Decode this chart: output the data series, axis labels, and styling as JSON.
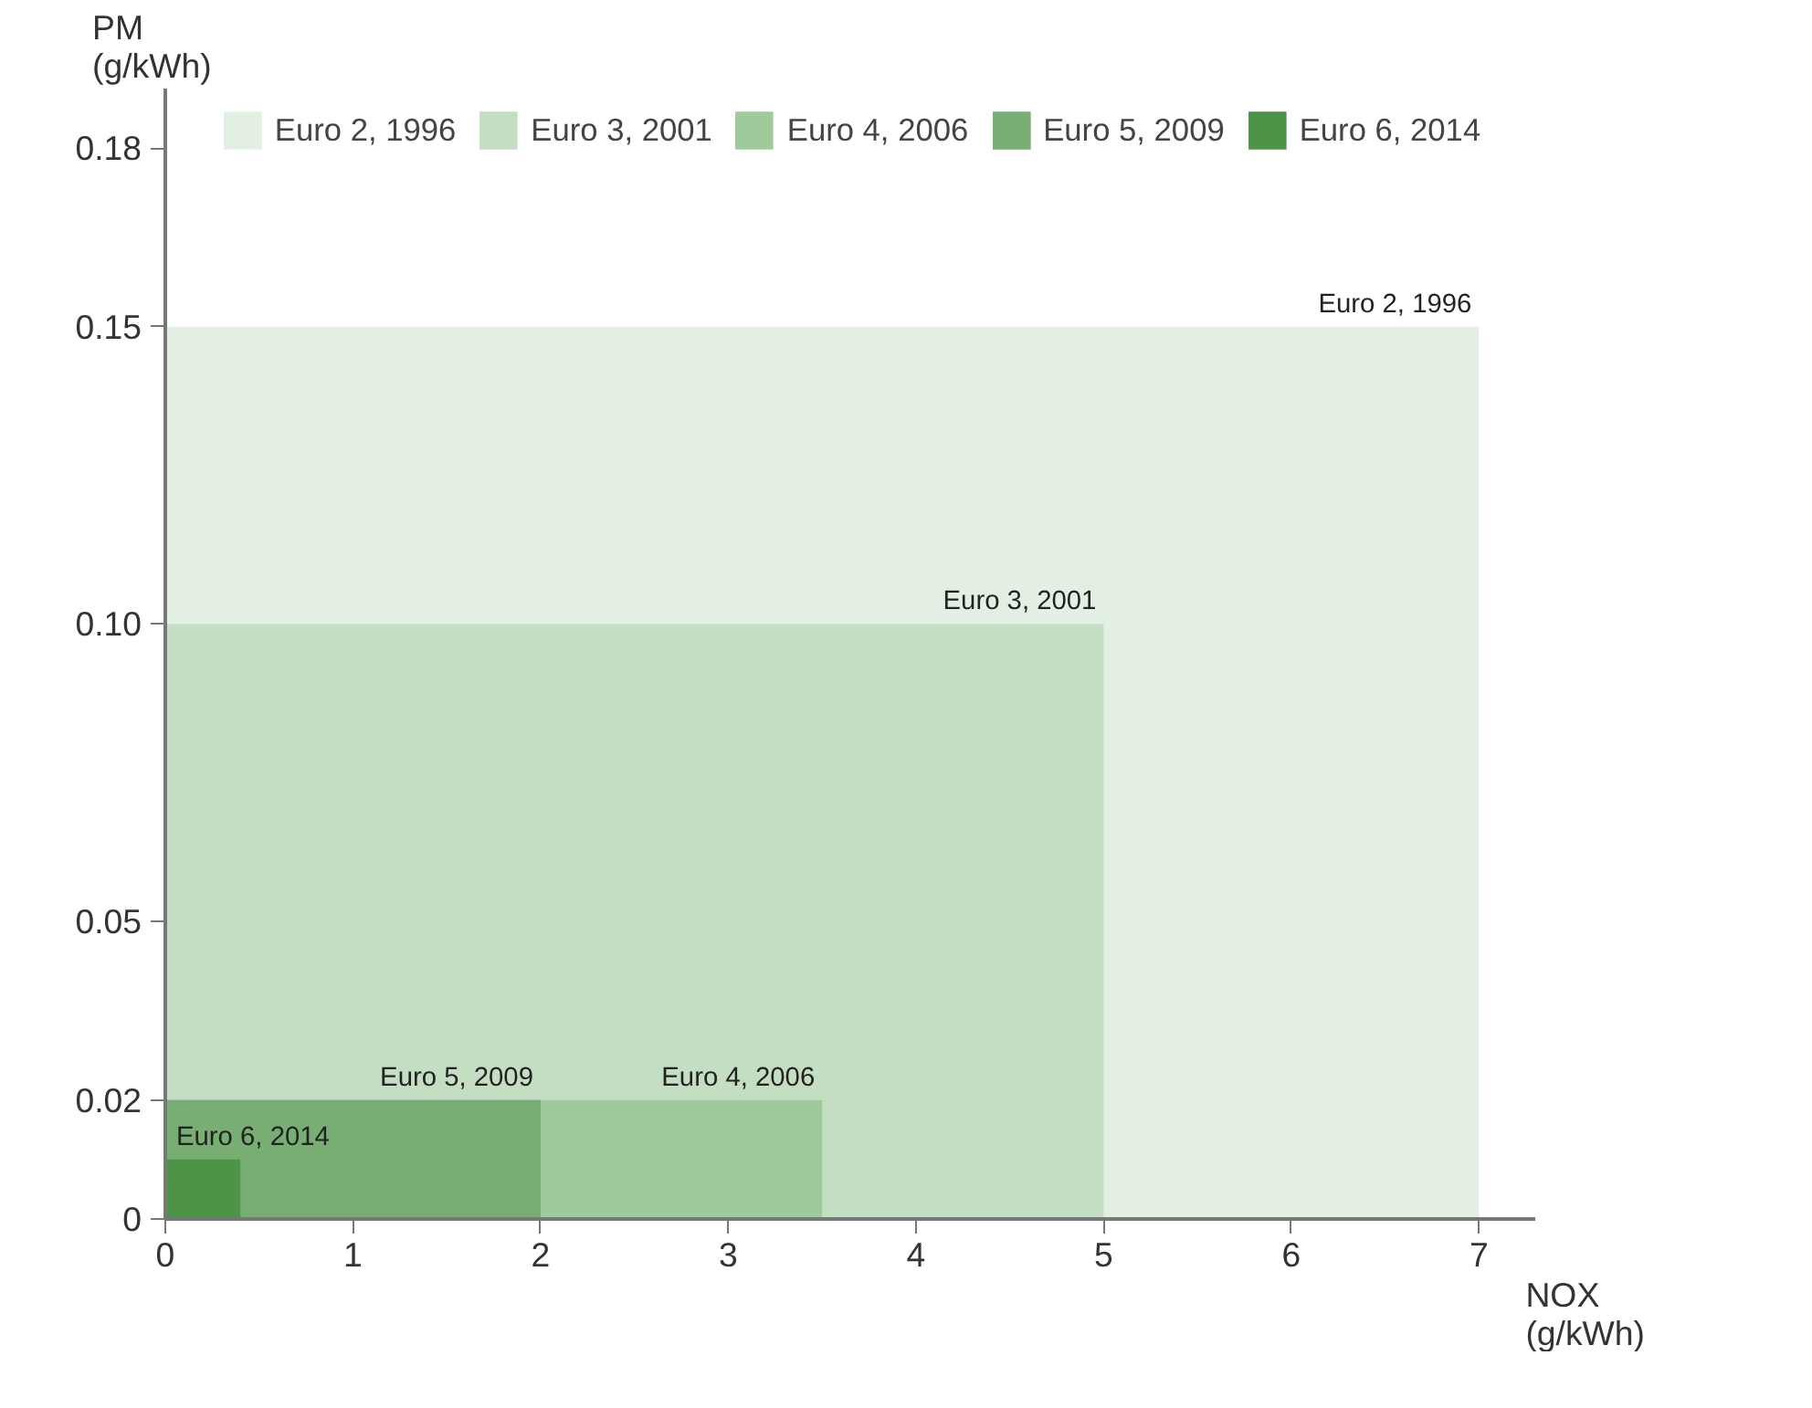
{
  "chart_data": {
    "type": "area",
    "xlabel": "NOX\n(g/kWh)",
    "ylabel": "PM\n(g/kWh)",
    "legend": "top",
    "grid": false,
    "xlim": [
      0,
      7.3
    ],
    "ylim": [
      0,
      0.19
    ],
    "xticks": [
      0,
      1,
      2,
      3,
      4,
      5,
      6,
      7
    ],
    "yticks": [
      0,
      0.02,
      0.05,
      {
        "value": 0.1,
        "label": "0.10"
      },
      0.15,
      0.18
    ],
    "series": [
      {
        "name": "Euro 2, 1996",
        "color": "#e4efe4",
        "x": [
          0,
          7
        ],
        "values": [
          0.15,
          0.15
        ]
      },
      {
        "name": "Euro 3, 2001",
        "color": "#c4dec3",
        "x": [
          0,
          5
        ],
        "values": [
          0.1,
          0.1
        ]
      },
      {
        "name": "Euro 4, 2006",
        "color": "#9fca9c",
        "x": [
          0,
          3.5
        ],
        "values": [
          0.02,
          0.02
        ]
      },
      {
        "name": "Euro 5, 2009",
        "color": "#78ad73",
        "x": [
          0,
          2
        ],
        "values": [
          0.02,
          0.02
        ]
      },
      {
        "name": "Euro 6, 2014",
        "color": "#4e9448",
        "x": [
          0,
          0.4
        ],
        "values": [
          0.01,
          0.01
        ]
      }
    ]
  }
}
